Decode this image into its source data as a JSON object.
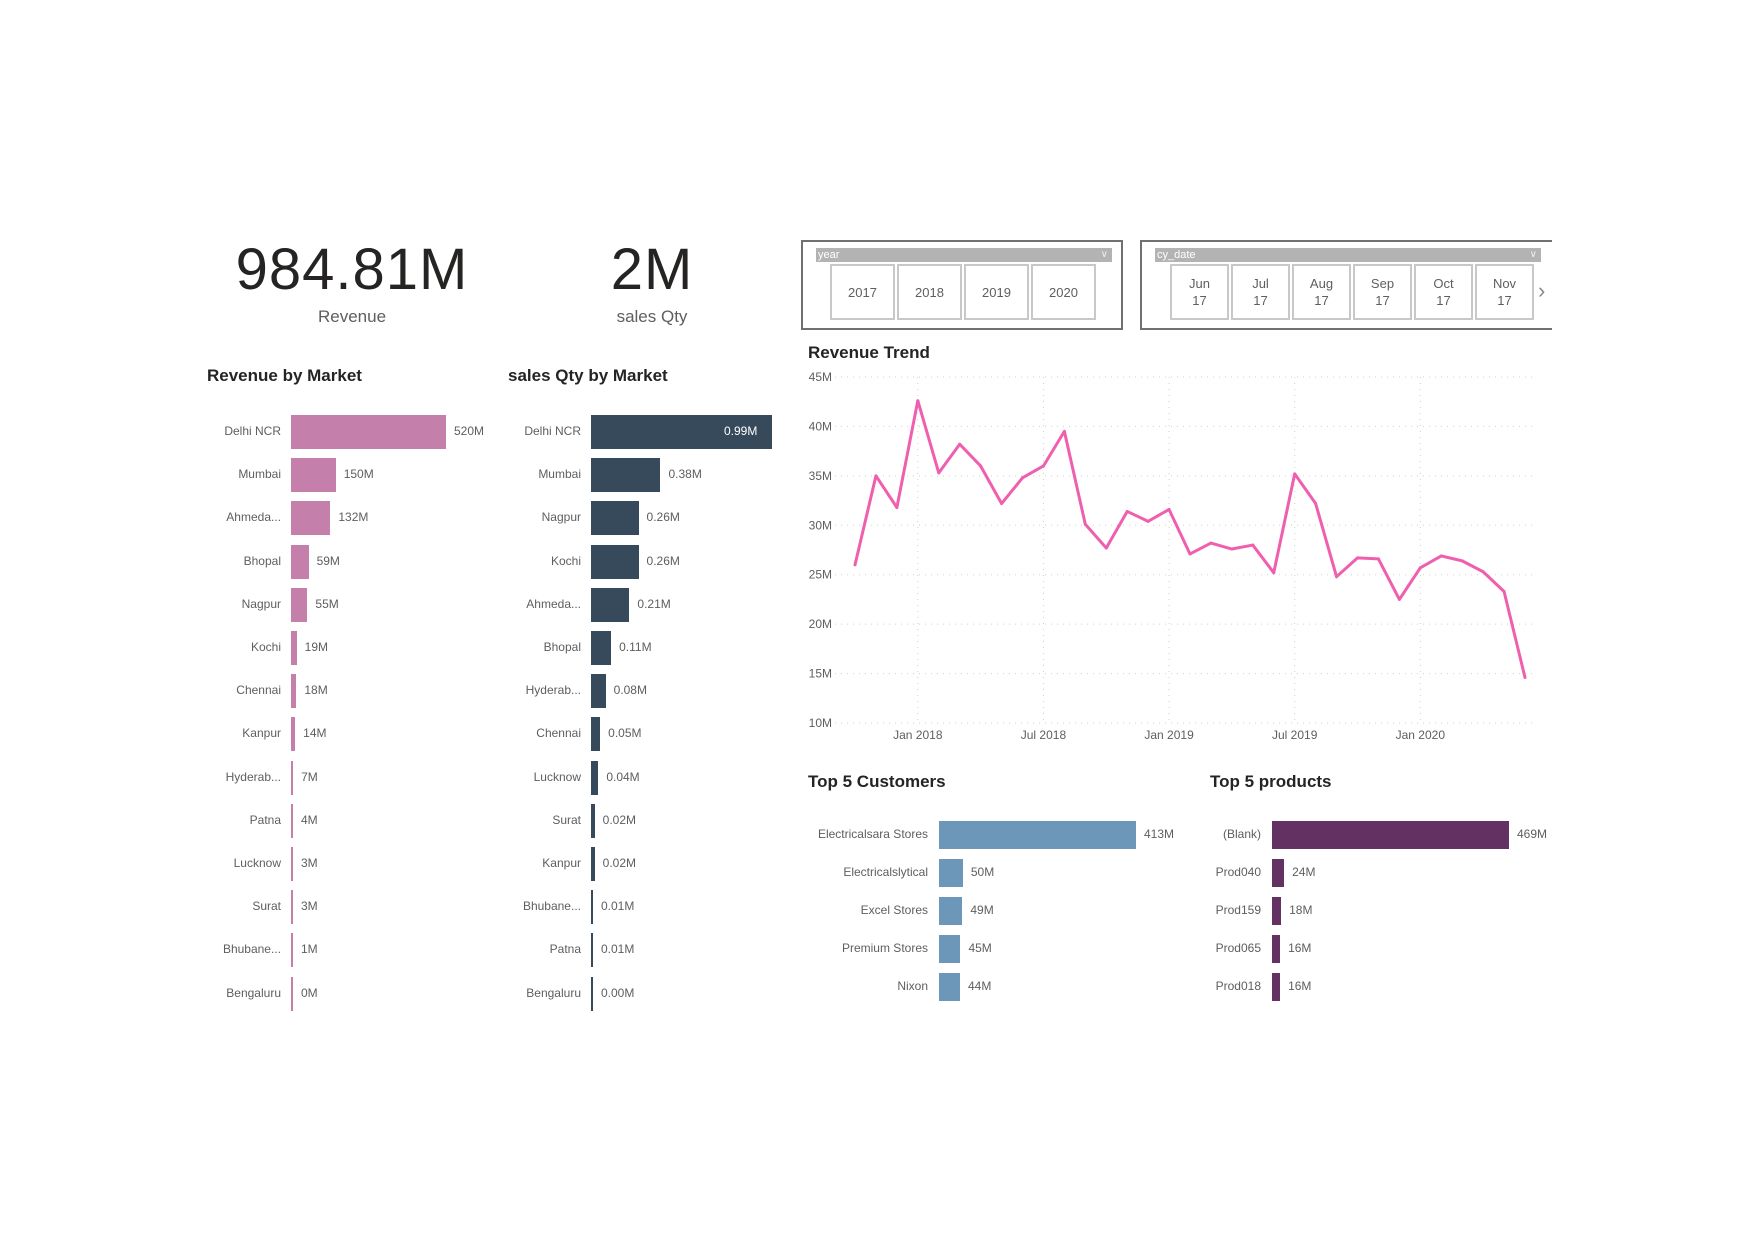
{
  "kpis": [
    {
      "value": "984.81M",
      "label": "Revenue"
    },
    {
      "value": "2M",
      "label": "sales Qty"
    }
  ],
  "slicers": {
    "year": {
      "header": "year",
      "options": [
        "2017",
        "2018",
        "2019",
        "2020"
      ]
    },
    "cy_date": {
      "header": "cy_date",
      "options": [
        "Jun 17",
        "Jul 17",
        "Aug 17",
        "Sep 17",
        "Oct 17",
        "Nov 17"
      ],
      "next_icon": "chevron-right-icon"
    }
  },
  "colors": {
    "revenue_market": "#c47fab",
    "qty_market": "#374a5c",
    "trend": "#ef5fae",
    "customers": "#6c97b9",
    "products": "#633262"
  },
  "chart_data": [
    {
      "type": "bar",
      "orientation": "horizontal",
      "title": "Revenue by Market",
      "categories": [
        "Delhi NCR",
        "Mumbai",
        "Ahmeda...",
        "Bhopal",
        "Nagpur",
        "Kochi",
        "Chennai",
        "Kanpur",
        "Hyderab...",
        "Patna",
        "Lucknow",
        "Surat",
        "Bhubane...",
        "Bengaluru"
      ],
      "values": [
        520,
        150,
        132,
        59,
        55,
        19,
        18,
        14,
        7,
        4,
        3,
        3,
        1,
        0
      ],
      "labels": [
        "520M",
        "150M",
        "132M",
        "59M",
        "55M",
        "19M",
        "18M",
        "14M",
        "7M",
        "4M",
        "3M",
        "3M",
        "1M",
        "0M"
      ]
    },
    {
      "type": "bar",
      "orientation": "horizontal",
      "title": "sales Qty by Market",
      "categories": [
        "Delhi NCR",
        "Mumbai",
        "Nagpur",
        "Kochi",
        "Ahmeda...",
        "Bhopal",
        "Hyderab...",
        "Chennai",
        "Lucknow",
        "Surat",
        "Kanpur",
        "Bhubane...",
        "Patna",
        "Bengaluru"
      ],
      "values": [
        0.99,
        0.38,
        0.26,
        0.26,
        0.21,
        0.11,
        0.08,
        0.05,
        0.04,
        0.02,
        0.02,
        0.01,
        0.01,
        0.0
      ],
      "labels": [
        "0.99M",
        "0.38M",
        "0.26M",
        "0.26M",
        "0.21M",
        "0.11M",
        "0.08M",
        "0.05M",
        "0.04M",
        "0.02M",
        "0.02M",
        "0.01M",
        "0.01M",
        "0.00M"
      ]
    },
    {
      "type": "line",
      "title": "Revenue Trend",
      "x": [
        "2017-10",
        "2017-11",
        "2017-12",
        "2018-01",
        "2018-02",
        "2018-03",
        "2018-04",
        "2018-05",
        "2018-06",
        "2018-07",
        "2018-08",
        "2018-09",
        "2018-10",
        "2018-11",
        "2018-12",
        "2019-01",
        "2019-02",
        "2019-03",
        "2019-04",
        "2019-05",
        "2019-06",
        "2019-07",
        "2019-08",
        "2019-09",
        "2019-10",
        "2019-11",
        "2019-12",
        "2020-01",
        "2020-02",
        "2020-03",
        "2020-04",
        "2020-05",
        "2020-06"
      ],
      "y": [
        26,
        35,
        31.8,
        42.6,
        35.3,
        38.2,
        36,
        32.2,
        34.8,
        36,
        39.5,
        30.1,
        27.7,
        31.4,
        30.4,
        31.6,
        27.1,
        28.2,
        27.6,
        28,
        25.2,
        35.2,
        32.2,
        24.8,
        26.7,
        26.6,
        22.5,
        25.7,
        26.9,
        26.4,
        25.3,
        23.3,
        14.6
      ],
      "ylim": [
        10,
        45
      ],
      "yticks": [
        "10M",
        "15M",
        "20M",
        "25M",
        "30M",
        "35M",
        "40M",
        "45M"
      ],
      "xticks": [
        {
          "at": "2018-01",
          "label": "Jan 2018"
        },
        {
          "at": "2018-07",
          "label": "Jul 2018"
        },
        {
          "at": "2019-01",
          "label": "Jan 2019"
        },
        {
          "at": "2019-07",
          "label": "Jul 2019"
        },
        {
          "at": "2020-01",
          "label": "Jan 2020"
        }
      ],
      "grid": true
    },
    {
      "type": "bar",
      "orientation": "horizontal",
      "title": "Top 5 Customers",
      "categories": [
        "Electricalsara Stores",
        "Electricalslytical",
        "Excel Stores",
        "Premium Stores",
        "Nixon"
      ],
      "values": [
        413,
        50,
        49,
        45,
        44
      ],
      "labels": [
        "413M",
        "50M",
        "49M",
        "45M",
        "44M"
      ]
    },
    {
      "type": "bar",
      "orientation": "horizontal",
      "title": "Top 5 products",
      "categories": [
        "(Blank)",
        "Prod040",
        "Prod159",
        "Prod065",
        "Prod018"
      ],
      "values": [
        469,
        24,
        18,
        16,
        16
      ],
      "labels": [
        "469M",
        "24M",
        "18M",
        "16M",
        "16M"
      ]
    }
  ]
}
